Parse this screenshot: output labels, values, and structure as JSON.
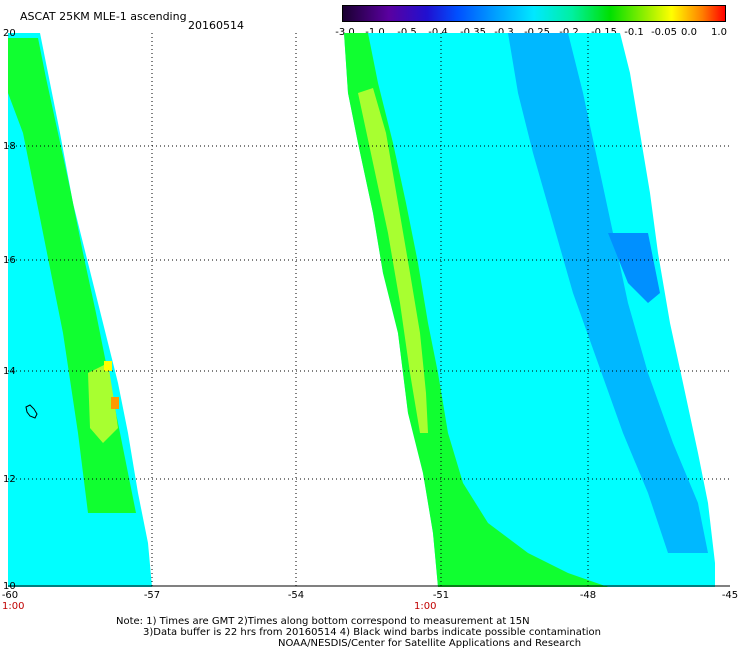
{
  "header": {
    "title": "ASCAT 25KM MLE-1 ascending",
    "date": "20160514"
  },
  "colorbar": {
    "ticks": [
      "-3.0",
      "-1.0",
      "-0.5",
      "-0.4",
      "-0.35",
      "-0.3",
      "-0.25",
      "-0.2",
      "-0.15",
      "-0.1",
      "-0.05",
      "0.0",
      "1.0"
    ],
    "colors": [
      "#1a0030",
      "#5a00a0",
      "#0050ff",
      "#00a0ff",
      "#00e8ff",
      "#00f0a0",
      "#00e000",
      "#a0f000",
      "#ffff00",
      "#ff8000",
      "#ff0000"
    ]
  },
  "map": {
    "lat_labels": [
      "20",
      "18",
      "16",
      "14",
      "12",
      "10"
    ],
    "lon_labels": [
      "-60",
      "-57",
      "-54",
      "-51",
      "-48",
      "-45"
    ],
    "time_labels": [
      "1:00",
      "1:00"
    ],
    "swath_colors": {
      "cyan": "#00ffff",
      "green": "#00ff20",
      "yellowgreen": "#a8ff30",
      "yellow": "#ffff00",
      "orange": "#ff9900",
      "blue": "#00b8ff"
    }
  },
  "notes": {
    "line1": "Note: 1) Times are GMT  2)Times along bottom correspond to measurement at 15N",
    "line2": "3)Data buffer is 22 hrs from 20160514  4) Black wind barbs indicate possible contamination",
    "line3": "NOAA/NESDIS/Center for Satellite Applications and Research"
  }
}
